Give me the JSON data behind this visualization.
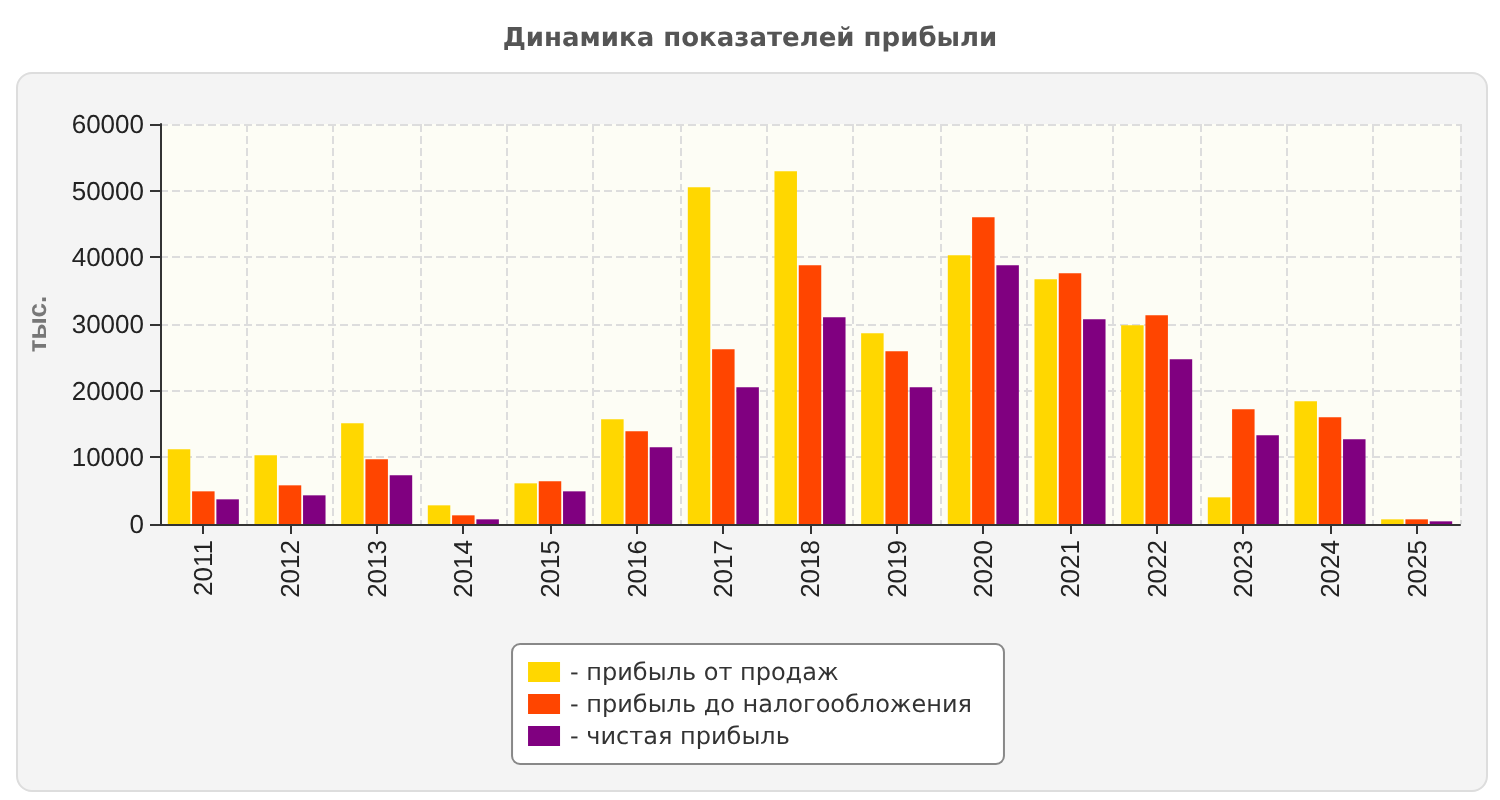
{
  "chart_data": {
    "type": "bar",
    "title": "Динамика показателей прибыли",
    "ylabel": "тыс.",
    "categories": [
      "2011",
      "2012",
      "2013",
      "2014",
      "2015",
      "2016",
      "2017",
      "2018",
      "2019",
      "2020",
      "2021",
      "2022",
      "2023",
      "2024",
      "2025"
    ],
    "series": [
      {
        "name": "- прибыль от продаж",
        "color": "#ffd700",
        "values": [
          11200,
          10300,
          15100,
          2800,
          6100,
          15700,
          50500,
          52900,
          28600,
          40300,
          36700,
          29800,
          4000,
          18400,
          700
        ]
      },
      {
        "name": "- прибыль до налогообложения",
        "color": "#ff4500",
        "values": [
          4900,
          5800,
          9700,
          1300,
          6400,
          13900,
          26200,
          38800,
          25900,
          46000,
          37600,
          31300,
          17200,
          16000,
          700
        ]
      },
      {
        "name": "- чистая прибыль",
        "color": "#800080",
        "values": [
          3700,
          4300,
          7300,
          700,
          4900,
          11500,
          20500,
          31000,
          20500,
          38800,
          30700,
          24700,
          13300,
          12700,
          400
        ]
      }
    ],
    "ylim": [
      0,
      60000
    ],
    "yticks": [
      0,
      10000,
      20000,
      30000,
      40000,
      50000,
      60000
    ],
    "grid": true,
    "legend": "bottom"
  }
}
